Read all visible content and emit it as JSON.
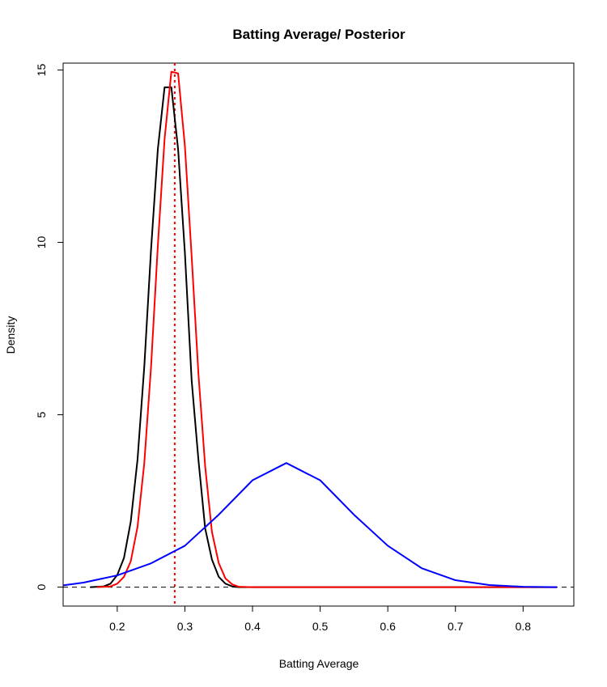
{
  "chart_data": {
    "type": "line",
    "title": "Batting Average/ Posterior",
    "xlabel": "Batting Average",
    "ylabel": "Density",
    "xlim": [
      0.12,
      0.875
    ],
    "ylim": [
      -0.55,
      15.2
    ],
    "x_ticks": [
      0.2,
      0.3,
      0.4,
      0.5,
      0.6,
      0.7,
      0.8
    ],
    "x_tick_labels": [
      "0.2",
      "0.3",
      "0.4",
      "0.5",
      "0.6",
      "0.7",
      "0.8"
    ],
    "y_ticks": [
      0,
      5,
      10,
      15
    ],
    "y_tick_labels": [
      "0",
      "5",
      "10",
      "15"
    ],
    "grid": false,
    "legend": "none",
    "series": [
      {
        "color": "#000000",
        "style": "solid",
        "x": [
          0.16,
          0.18,
          0.19,
          0.2,
          0.21,
          0.22,
          0.23,
          0.24,
          0.25,
          0.26,
          0.27,
          0.28,
          0.29,
          0.3,
          0.31,
          0.32,
          0.33,
          0.34,
          0.35,
          0.36,
          0.37,
          0.38,
          0.4,
          0.5,
          0.6,
          0.7,
          0.85
        ],
        "y": [
          0,
          0.02,
          0.1,
          0.35,
          0.85,
          1.9,
          3.7,
          6.4,
          9.8,
          12.7,
          14.5,
          14.5,
          12.7,
          9.7,
          6.0,
          3.7,
          1.7,
          0.8,
          0.3,
          0.1,
          0.02,
          0,
          0,
          0,
          0,
          0,
          0
        ]
      },
      {
        "color": "#ff0000",
        "style": "solid",
        "x": [
          0.17,
          0.19,
          0.2,
          0.21,
          0.22,
          0.23,
          0.24,
          0.25,
          0.26,
          0.27,
          0.28,
          0.29,
          0.3,
          0.31,
          0.32,
          0.33,
          0.34,
          0.35,
          0.36,
          0.37,
          0.38,
          0.4,
          0.5,
          0.6,
          0.7,
          0.85
        ],
        "y": [
          0,
          0.02,
          0.1,
          0.3,
          0.75,
          1.75,
          3.6,
          6.4,
          9.9,
          13.0,
          14.95,
          14.9,
          12.8,
          9.6,
          6.2,
          3.5,
          1.6,
          0.7,
          0.25,
          0.08,
          0.01,
          0,
          0,
          0,
          0,
          0
        ]
      },
      {
        "color": "#0000ff",
        "style": "solid",
        "x": [
          0.12,
          0.15,
          0.2,
          0.25,
          0.3,
          0.35,
          0.4,
          0.45,
          0.5,
          0.55,
          0.6,
          0.65,
          0.7,
          0.75,
          0.8,
          0.85
        ],
        "y": [
          0.05,
          0.13,
          0.34,
          0.69,
          1.2,
          2.1,
          3.1,
          3.6,
          3.1,
          2.1,
          1.2,
          0.55,
          0.2,
          0.06,
          0.01,
          0
        ]
      }
    ],
    "reference_lines": [
      {
        "orientation": "vertical",
        "x": 0.285,
        "color": "#ff0000",
        "style": "dotted"
      },
      {
        "orientation": "horizontal",
        "y": 0,
        "color": "#000000",
        "style": "dashed"
      }
    ]
  }
}
